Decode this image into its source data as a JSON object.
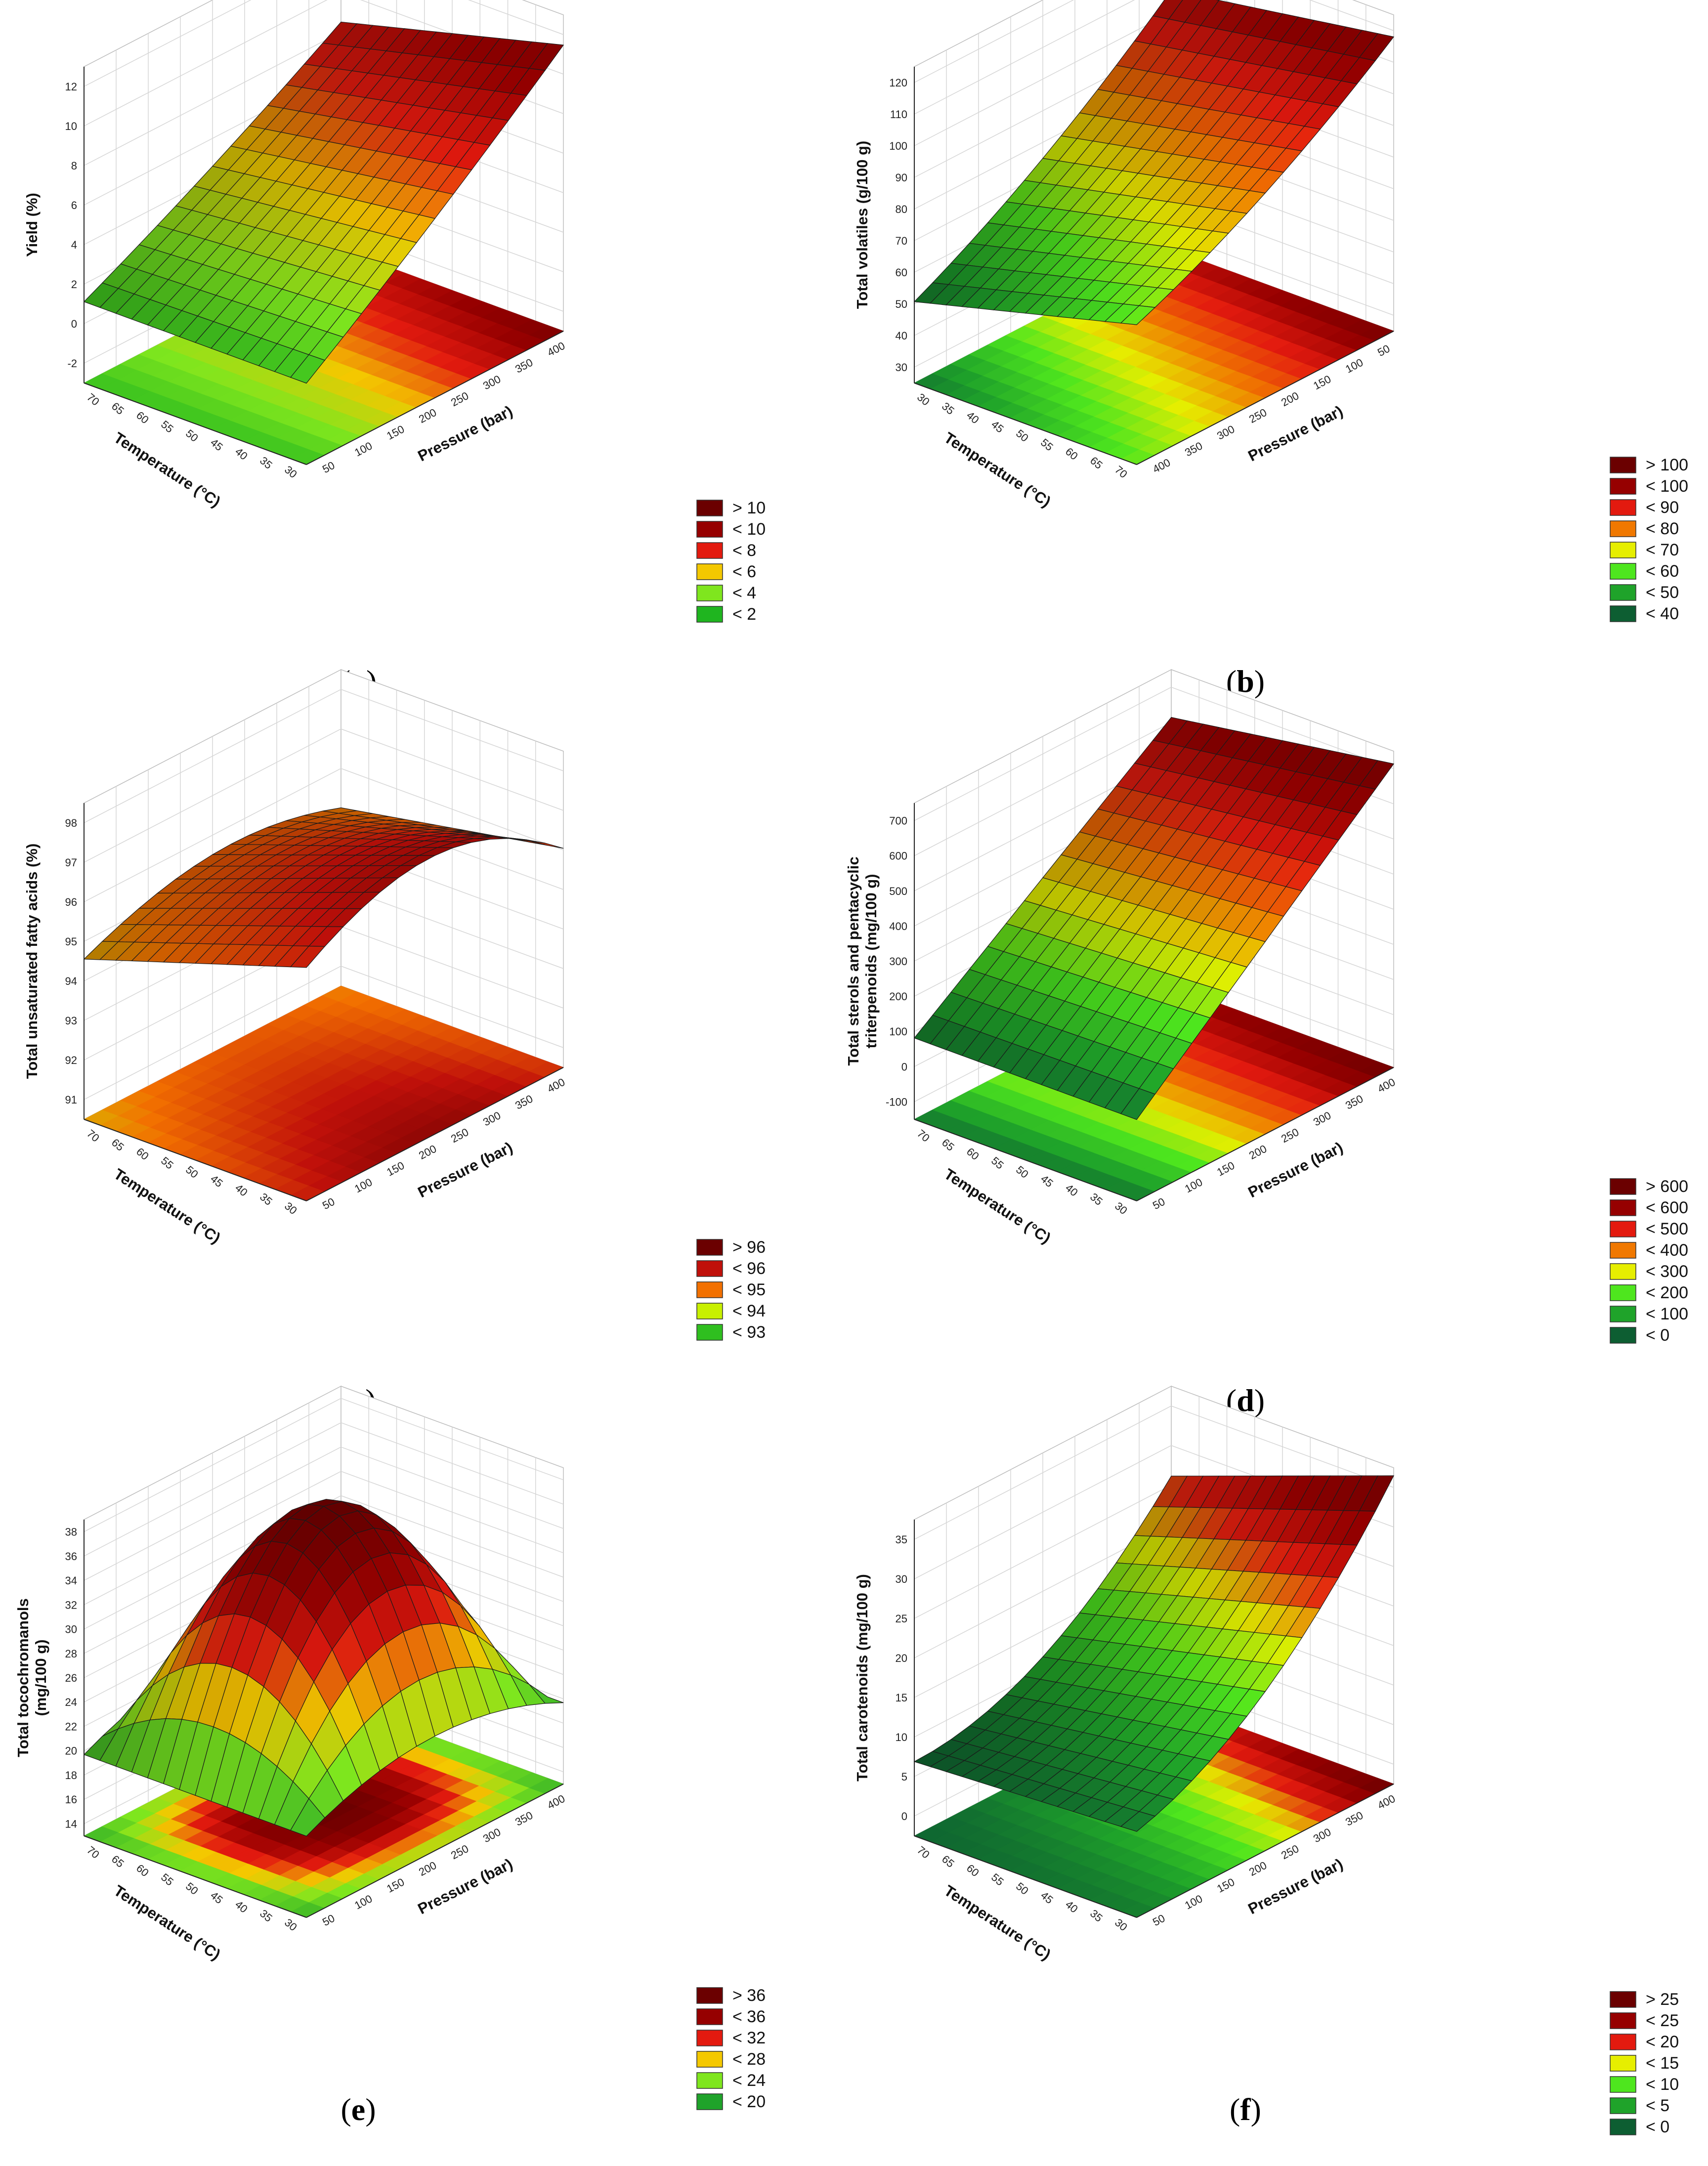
{
  "chart_data": [
    {
      "id": "a",
      "type": "surface",
      "panel_label": "a",
      "zlabel": "Yield (%)",
      "z_ticks": [
        "-2",
        "0",
        "2",
        "4",
        "6",
        "8",
        "10",
        "12"
      ],
      "zlim": [
        -2,
        12
      ],
      "xlabel": "Pressure (bar)",
      "x_ticks": [
        "50",
        "100",
        "150",
        "200",
        "250",
        "300",
        "350",
        "400"
      ],
      "xlim": [
        50,
        400
      ],
      "ylabel": "Temperature (°C)",
      "y_ticks": [
        "30",
        "35",
        "40",
        "45",
        "50",
        "55",
        "60",
        "65",
        "70"
      ],
      "ylim": [
        30,
        70
      ],
      "surface_value_range": [
        2,
        11
      ],
      "legend": [
        {
          "label": "> 10",
          "color": "#6b0000"
        },
        {
          "label": "< 10",
          "color": "#960000"
        },
        {
          "label": "< 8",
          "color": "#e31a0f"
        },
        {
          "label": "< 6",
          "color": "#f4c800"
        },
        {
          "label": "< 4",
          "color": "#7fe61e"
        },
        {
          "label": "< 2",
          "color": "#1fb51f"
        }
      ]
    },
    {
      "id": "b",
      "type": "surface",
      "panel_label": "b",
      "zlabel": "Total volatiles (g/100 g)",
      "z_ticks": [
        "30",
        "40",
        "50",
        "60",
        "70",
        "80",
        "90",
        "100",
        "110",
        "120"
      ],
      "zlim": [
        30,
        120
      ],
      "xlabel": "Pressure (bar)",
      "x_ticks": [
        "400",
        "350",
        "300",
        "250",
        "200",
        "150",
        "100",
        "50"
      ],
      "xlim": [
        400,
        50
      ],
      "ylabel": "Temperature (°C)",
      "y_ticks": [
        "70",
        "65",
        "60",
        "55",
        "50",
        "45",
        "40",
        "35",
        "30"
      ],
      "ylim": [
        70,
        30
      ],
      "surface_value_range": [
        40,
        118
      ],
      "legend": [
        {
          "label": "> 100",
          "color": "#6b0000"
        },
        {
          "label": "< 100",
          "color": "#960000"
        },
        {
          "label": "< 90",
          "color": "#e31a0f"
        },
        {
          "label": "< 80",
          "color": "#f07800"
        },
        {
          "label": "< 70",
          "color": "#e6ee00"
        },
        {
          "label": "< 60",
          "color": "#4ee61e"
        },
        {
          "label": "< 50",
          "color": "#1fa32a"
        },
        {
          "label": "< 40",
          "color": "#0d5e32"
        }
      ]
    },
    {
      "id": "c",
      "type": "surface",
      "panel_label": "c",
      "zlabel": "Total unsaturated fatty acids (%)",
      "z_ticks": [
        "91",
        "92",
        "93",
        "94",
        "95",
        "96",
        "97",
        "98"
      ],
      "zlim": [
        90.5,
        98
      ],
      "xlabel": "Pressure (bar)",
      "x_ticks": [
        "50",
        "100",
        "150",
        "200",
        "250",
        "300",
        "350",
        "400"
      ],
      "xlim": [
        50,
        400
      ],
      "ylabel": "Temperature (°C)",
      "y_ticks": [
        "30",
        "35",
        "40",
        "45",
        "50",
        "55",
        "60",
        "65",
        "70"
      ],
      "ylim": [
        30,
        70
      ],
      "surface_value_range": [
        91,
        97.6
      ],
      "legend": [
        {
          "label": "> 96",
          "color": "#6b0000"
        },
        {
          "label": "< 96",
          "color": "#c0100a"
        },
        {
          "label": "< 95",
          "color": "#f27000"
        },
        {
          "label": "< 94",
          "color": "#c8f000"
        },
        {
          "label": "< 93",
          "color": "#2fbf1f"
        }
      ]
    },
    {
      "id": "d",
      "type": "surface",
      "panel_label": "d",
      "zlabel": "Total sterols and pentacyclic triterpenoids (mg/100 g)",
      "zlabel_lines": [
        "Total sterols and pentacyclic",
        "triterpenoids (mg/100 g)"
      ],
      "z_ticks": [
        "-100",
        "0",
        "100",
        "200",
        "300",
        "400",
        "500",
        "600",
        "700"
      ],
      "zlim": [
        -100,
        700
      ],
      "xlabel": "Pressure (bar)",
      "x_ticks": [
        "50",
        "100",
        "150",
        "200",
        "250",
        "300",
        "350",
        "400"
      ],
      "xlim": [
        50,
        400
      ],
      "ylabel": "Temperature (°C)",
      "y_ticks": [
        "30",
        "35",
        "40",
        "45",
        "50",
        "55",
        "60",
        "65",
        "70"
      ],
      "ylim": [
        30,
        70
      ],
      "surface_value_range": [
        50,
        650
      ],
      "legend": [
        {
          "label": "> 600",
          "color": "#6b0000"
        },
        {
          "label": "< 600",
          "color": "#960000"
        },
        {
          "label": "< 500",
          "color": "#e31a0f"
        },
        {
          "label": "< 400",
          "color": "#f07800"
        },
        {
          "label": "< 300",
          "color": "#e6ee00"
        },
        {
          "label": "< 200",
          "color": "#4ee61e"
        },
        {
          "label": "< 100",
          "color": "#1fa32a"
        },
        {
          "label": "< 0",
          "color": "#0d5e32"
        }
      ]
    },
    {
      "id": "e",
      "type": "surface",
      "panel_label": "e",
      "zlabel": "Total tocochromanols (mg/100 g)",
      "zlabel_lines": [
        "Total tocochromanols",
        "(mg/100 g)"
      ],
      "z_ticks": [
        "14",
        "16",
        "18",
        "20",
        "22",
        "24",
        "26",
        "28",
        "30",
        "32",
        "34",
        "36",
        "38"
      ],
      "zlim": [
        13,
        38
      ],
      "xlabel": "Pressure (bar)",
      "x_ticks": [
        "50",
        "100",
        "150",
        "200",
        "250",
        "300",
        "350",
        "400"
      ],
      "xlim": [
        50,
        400
      ],
      "ylabel": "Temperature (°C)",
      "y_ticks": [
        "30",
        "35",
        "40",
        "45",
        "50",
        "55",
        "60",
        "65",
        "70"
      ],
      "ylim": [
        30,
        70
      ],
      "surface_value_range": [
        19,
        37.5
      ],
      "legend": [
        {
          "label": "> 36",
          "color": "#6b0000"
        },
        {
          "label": "< 36",
          "color": "#960000"
        },
        {
          "label": "< 32",
          "color": "#e31a0f"
        },
        {
          "label": "< 28",
          "color": "#f4c800"
        },
        {
          "label": "< 24",
          "color": "#7fe61e"
        },
        {
          "label": "< 20",
          "color": "#1fa32a"
        }
      ]
    },
    {
      "id": "f",
      "type": "surface",
      "panel_label": "f",
      "zlabel": "Total carotenoids (mg/100 g)",
      "z_ticks": [
        "0",
        "5",
        "10",
        "15",
        "20",
        "25",
        "30",
        "35"
      ],
      "zlim": [
        -2,
        35
      ],
      "xlabel": "Pressure (bar)",
      "x_ticks": [
        "50",
        "100",
        "150",
        "200",
        "250",
        "300",
        "350",
        "400"
      ],
      "xlim": [
        50,
        400
      ],
      "ylabel": "Temperature (°C)",
      "y_ticks": [
        "30",
        "35",
        "40",
        "45",
        "50",
        "55",
        "60",
        "65",
        "70"
      ],
      "ylim": [
        30,
        70
      ],
      "surface_value_range": [
        0,
        33
      ],
      "legend": [
        {
          "label": "> 25",
          "color": "#6b0000"
        },
        {
          "label": "< 25",
          "color": "#960000"
        },
        {
          "label": "< 20",
          "color": "#e31a0f"
        },
        {
          "label": "< 15",
          "color": "#e6ee00"
        },
        {
          "label": "< 10",
          "color": "#4ee61e"
        },
        {
          "label": "< 5",
          "color": "#1fa32a"
        },
        {
          "label": "< 0",
          "color": "#0d5e32"
        }
      ]
    }
  ]
}
